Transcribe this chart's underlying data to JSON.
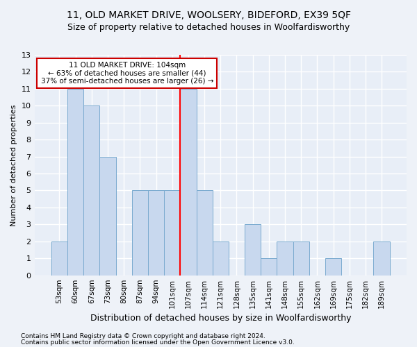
{
  "title": "11, OLD MARKET DRIVE, WOOLSERY, BIDEFORD, EX39 5QF",
  "subtitle": "Size of property relative to detached houses in Woolfardisworthy",
  "xlabel": "Distribution of detached houses by size in Woolfardisworthy",
  "ylabel": "Number of detached properties",
  "categories": [
    "53sqm",
    "60sqm",
    "67sqm",
    "73sqm",
    "80sqm",
    "87sqm",
    "94sqm",
    "101sqm",
    "107sqm",
    "114sqm",
    "121sqm",
    "128sqm",
    "135sqm",
    "141sqm",
    "148sqm",
    "155sqm",
    "162sqm",
    "169sqm",
    "175sqm",
    "182sqm",
    "189sqm"
  ],
  "values": [
    2,
    11,
    10,
    7,
    0,
    5,
    5,
    5,
    11,
    5,
    2,
    0,
    3,
    1,
    2,
    2,
    0,
    1,
    0,
    0,
    2
  ],
  "bar_color": "#c8d8ee",
  "bar_edge_color": "#7aaacf",
  "red_line_after_index": 7,
  "annotation_text": "11 OLD MARKET DRIVE: 104sqm\n← 63% of detached houses are smaller (44)\n37% of semi-detached houses are larger (26) →",
  "annotation_box_color": "#ffffff",
  "annotation_box_edge": "#cc0000",
  "ylim": [
    0,
    13
  ],
  "yticks": [
    0,
    1,
    2,
    3,
    4,
    5,
    6,
    7,
    8,
    9,
    10,
    11,
    12,
    13
  ],
  "background_color": "#e8eef7",
  "grid_color": "#ffffff",
  "title_fontsize": 10,
  "subtitle_fontsize": 9,
  "footnote1": "Contains HM Land Registry data © Crown copyright and database right 2024.",
  "footnote2": "Contains public sector information licensed under the Open Government Licence v3.0."
}
